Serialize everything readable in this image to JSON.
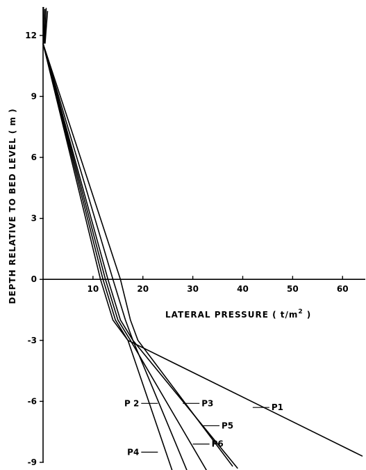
{
  "chart_data": {
    "type": "line",
    "title": "",
    "xlabel": "LATERAL PRESSURE  ( t/m",
    "xlabel_sup": "2",
    "xlabel_tail": " )",
    "ylabel": "DEPTH RELATIVE TO BED LEVEL  ( m )",
    "xlim": [
      0,
      64
    ],
    "ylim": [
      -9,
      13.4
    ],
    "x_ticks": [
      10,
      20,
      30,
      40,
      50,
      60
    ],
    "y_ticks": [
      12,
      9,
      6,
      3,
      0,
      -3,
      -6,
      -9
    ],
    "y_tick_labels": [
      "12",
      "9",
      "6",
      "3",
      "0",
      "-3",
      "-6",
      "-9"
    ],
    "grid": false,
    "series": [
      {
        "name": "P1",
        "points": [
          [
            0,
            11.6
          ],
          [
            12,
            0
          ],
          [
            14.5,
            -2
          ],
          [
            17,
            -3
          ],
          [
            64,
            -8.7
          ]
        ]
      },
      {
        "name": "P2",
        "points": [
          [
            0,
            11.6
          ],
          [
            13,
            0
          ],
          [
            15.5,
            -2
          ],
          [
            18,
            -3
          ],
          [
            29,
            -9.5
          ]
        ]
      },
      {
        "name": "P3",
        "points": [
          [
            0,
            11.6
          ],
          [
            15.5,
            0
          ],
          [
            17.5,
            -2
          ],
          [
            19,
            -3
          ],
          [
            38,
            -9.2
          ]
        ]
      },
      {
        "name": "P4",
        "points": [
          [
            0,
            11.6
          ],
          [
            11.5,
            0
          ],
          [
            14,
            -2
          ],
          [
            17,
            -3
          ],
          [
            26,
            -9.5
          ]
        ]
      },
      {
        "name": "P5",
        "points": [
          [
            0,
            11.6
          ],
          [
            14,
            0
          ],
          [
            16.5,
            -2
          ],
          [
            18,
            -3
          ],
          [
            39,
            -9.3
          ]
        ]
      },
      {
        "name": "P6",
        "points": [
          [
            0,
            11.6
          ],
          [
            12.5,
            0
          ],
          [
            15,
            -2
          ],
          [
            17.5,
            -3
          ],
          [
            33,
            -9.5
          ]
        ]
      }
    ],
    "series_labels": [
      {
        "name": "P1",
        "label": "P1",
        "at": [
          42,
          -6.3
        ],
        "side": "right"
      },
      {
        "name": "P2",
        "label": "P 2",
        "at": [
          23,
          -6.1
        ],
        "side": "left"
      },
      {
        "name": "P3",
        "label": "P3",
        "at": [
          28,
          -6.1
        ],
        "side": "right"
      },
      {
        "name": "P4",
        "label": "P4",
        "at": [
          23,
          -8.5
        ],
        "side": "left"
      },
      {
        "name": "P5",
        "label": "P5",
        "at": [
          32,
          -7.2
        ],
        "side": "right"
      },
      {
        "name": "P6",
        "label": "P6",
        "at": [
          30,
          -8.1
        ],
        "side": "right"
      }
    ]
  }
}
